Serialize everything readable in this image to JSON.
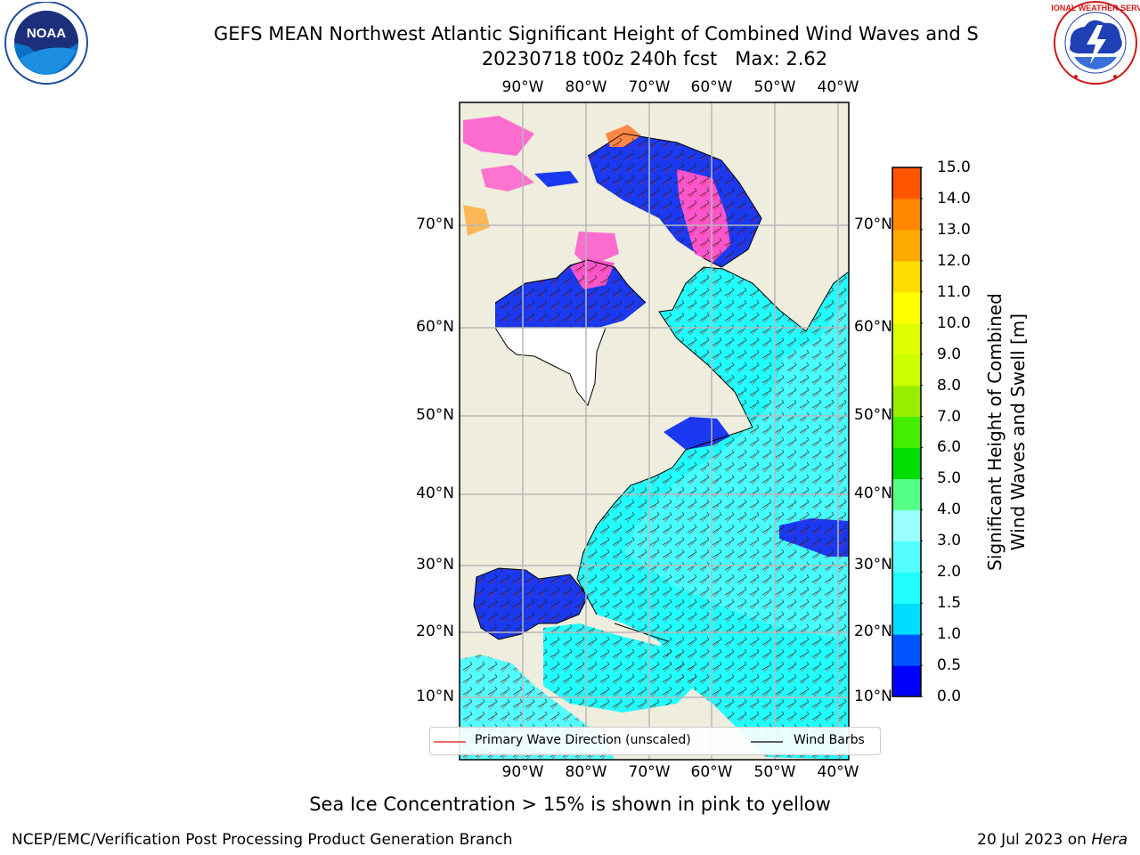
{
  "header": {
    "title": "GEFS MEAN Northwest Atlantic Significant Height of Combined Wind Waves and S",
    "subtitle": "20230718 t00z 240h fcst   Max: 2.62"
  },
  "logos": {
    "noaa": {
      "name": "noaa-logo",
      "text": "NOAA"
    },
    "nws": {
      "name": "nws-logo",
      "text": "NATIONAL WEATHER SERVICE"
    }
  },
  "map": {
    "lon_labels": [
      "90°W",
      "80°W",
      "70°W",
      "60°W",
      "50°W",
      "40°W"
    ],
    "lat_labels_left": [
      "70°N",
      "60°N",
      "50°N",
      "40°N",
      "30°N",
      "20°N",
      "10°N"
    ],
    "lat_labels_right": [
      "70°N",
      "60°N",
      "50°N",
      "40°N",
      "30°N",
      "20°N",
      "10°N"
    ],
    "colors": {
      "land": "#efedde",
      "ocean_low": "#22ffff",
      "ocean_mid": "#55ffff",
      "deep_blue": "#1a39f0",
      "ice_pink": "#ff55cc",
      "grid": "#b8b8b8"
    }
  },
  "legend": {
    "wave_direction": "Primary Wave Direction (unscaled)",
    "wind_barbs": "Wind Barbs"
  },
  "colorbar": {
    "title": "Significant Height of Combined\nWind Waves and Swell [m]",
    "ticks": [
      "15.0",
      "14.0",
      "13.0",
      "12.0",
      "11.0",
      "10.0",
      "9.0",
      "8.0",
      "7.0",
      "6.0",
      "5.0",
      "4.0",
      "3.0",
      "2.0",
      "1.5",
      "1.0",
      "0.5",
      "0.0"
    ],
    "colors": [
      "#0000ff",
      "#0055ff",
      "#00ddff",
      "#22ffff",
      "#55ffff",
      "#99ffff",
      "#55ff88",
      "#00dd00",
      "#44ee00",
      "#99ee00",
      "#ccff00",
      "#ddff00",
      "#ffff00",
      "#ffdd00",
      "#ffaa00",
      "#ff8800",
      "#ff5500",
      "#ff2a00",
      "#ff0000"
    ]
  },
  "footer": {
    "note": "Sea Ice Concentration > 15% is shown in pink to yellow",
    "credit": "NCEP/EMC/Verification Post Processing Product Generation Branch",
    "date": "20 Jul 2023 on ",
    "machine": "Hera"
  }
}
